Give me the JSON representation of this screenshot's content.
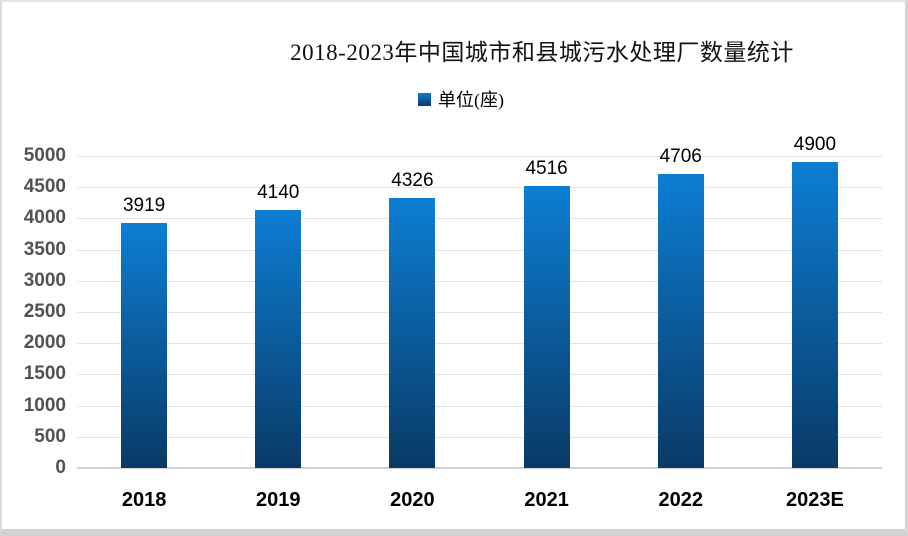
{
  "chart_data": {
    "type": "bar",
    "title": "2018-2023年中国城市和县城污水处理厂数量统计",
    "legend_label": "单位(座)",
    "legend_position": "top",
    "categories": [
      "2018",
      "2019",
      "2020",
      "2021",
      "2022",
      "2023E"
    ],
    "values": [
      3919,
      4140,
      4326,
      4516,
      4706,
      4900
    ],
    "xlabel": "",
    "ylabel": "",
    "ylim": [
      0,
      5000
    ],
    "ytick_step": 500,
    "ytick_labels": [
      "0",
      "500",
      "1000",
      "1500",
      "2000",
      "2500",
      "3000",
      "3500",
      "4000",
      "4500",
      "5000"
    ],
    "grid": true,
    "colors": {
      "bar_gradient_top": "#0c7ed3",
      "bar_gradient_bottom": "#0a3a66",
      "gridline": "#e4e4e4",
      "axis_line": "#d2d2d2",
      "y_tick_text": "#525252",
      "x_tick_text": "#000000",
      "value_label_text": "#000000",
      "title_text": "#111111"
    }
  }
}
